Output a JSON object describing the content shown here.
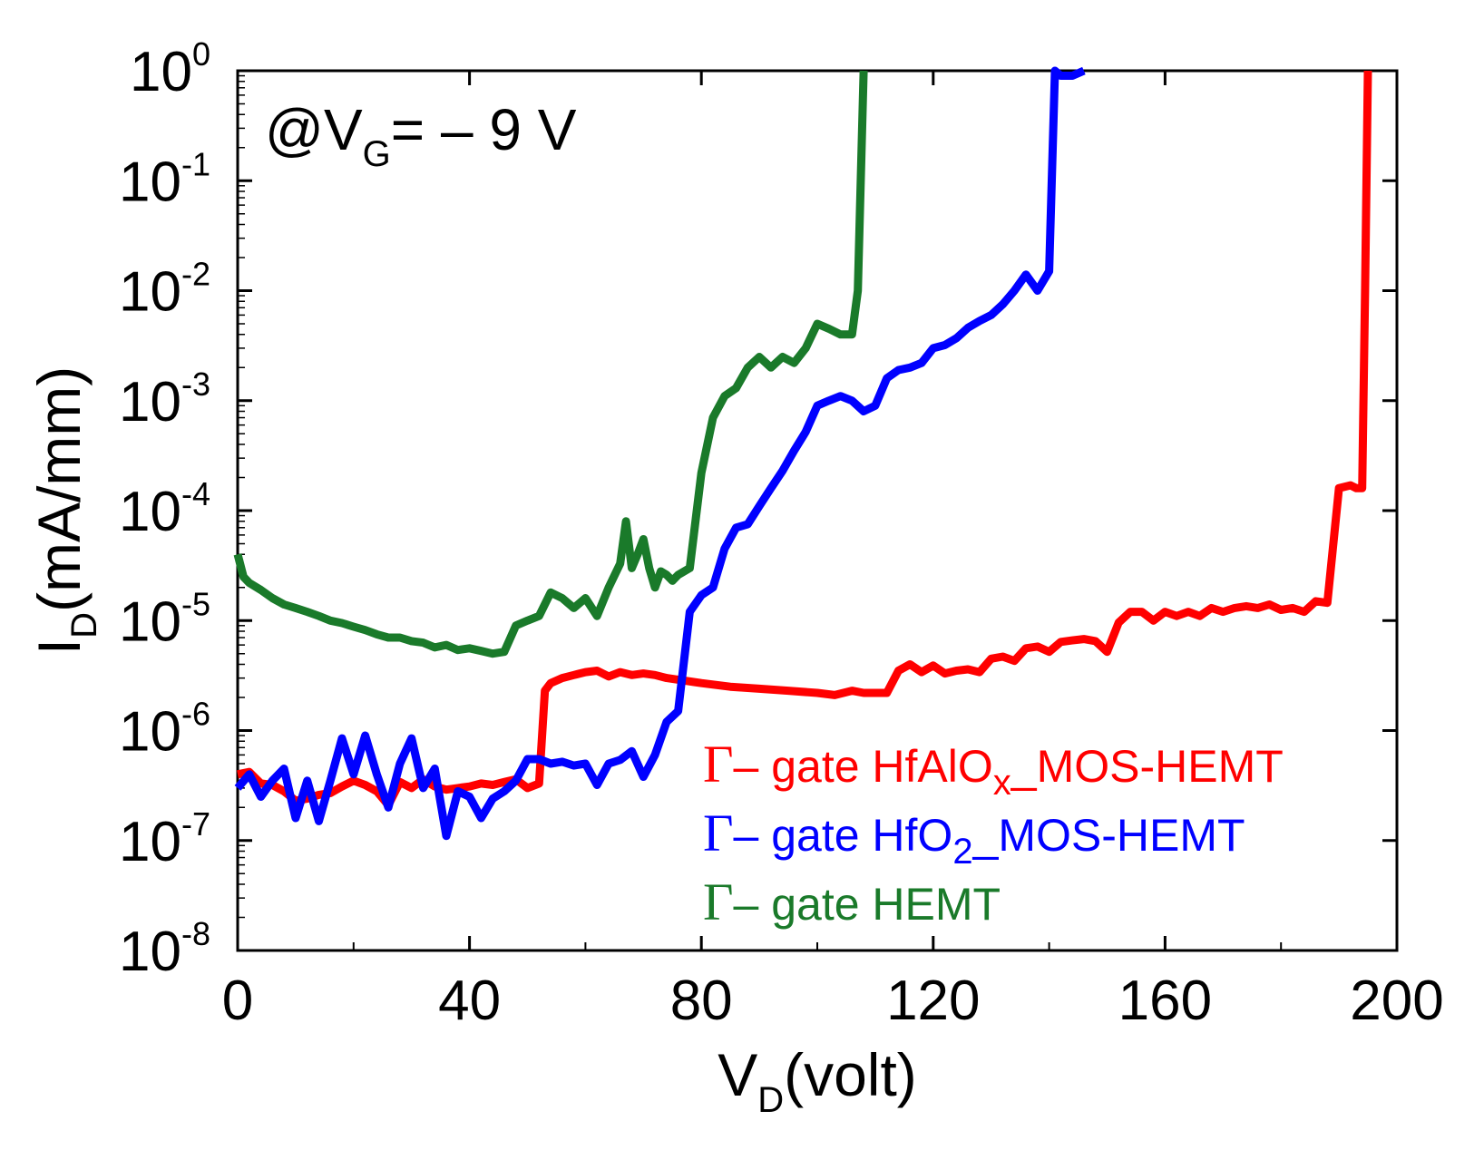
{
  "chart_data": {
    "type": "line",
    "title": "",
    "annotation": {
      "prefix": "@V",
      "sub": "G",
      "suffix": "= – 9 V"
    },
    "xlabel": {
      "main": "V",
      "sub": "D",
      "rest": "(volt)"
    },
    "ylabel": {
      "main": "I",
      "sub": "D",
      "rest": "(mA/mm)"
    },
    "xlim": [
      0,
      200
    ],
    "ylim_log10": [
      -8,
      0
    ],
    "y_scale": "log",
    "x_ticks": [
      0,
      40,
      80,
      120,
      160,
      200
    ],
    "x_tick_labels": [
      "0",
      "40",
      "80",
      "120",
      "160",
      "200"
    ],
    "y_tick_exponents": [
      0,
      -1,
      -2,
      -3,
      -4,
      -5,
      -6,
      -7,
      -8
    ],
    "y_tick_labels": [
      {
        "base": "10",
        "exp": "0"
      },
      {
        "base": "10",
        "exp": "-1"
      },
      {
        "base": "10",
        "exp": "-2"
      },
      {
        "base": "10",
        "exp": "-3"
      },
      {
        "base": "10",
        "exp": "-4"
      },
      {
        "base": "10",
        "exp": "-5"
      },
      {
        "base": "10",
        "exp": "-6"
      },
      {
        "base": "10",
        "exp": "-7"
      },
      {
        "base": "10",
        "exp": "-8"
      }
    ],
    "legend_position": "bottom-right",
    "series": [
      {
        "name": "Γ– gate HfAlOx_MOS-HEMT",
        "legend": {
          "gamma": "Γ",
          "text1": "– gate HfAlO",
          "sub": "x",
          "text2": "_MOS-HEMT"
        },
        "color": "#ff0000",
        "x": [
          0,
          2,
          4,
          6,
          8,
          10,
          12,
          14,
          16,
          18,
          20,
          22,
          24,
          26,
          28,
          30,
          32,
          34,
          36,
          38,
          40,
          42,
          44,
          46,
          48,
          50,
          52,
          53,
          54,
          56,
          58,
          60,
          62,
          64,
          66,
          68,
          70,
          72,
          74,
          76,
          78,
          80,
          85,
          90,
          95,
          100,
          103,
          106,
          108,
          110,
          112,
          114,
          116,
          118,
          120,
          122,
          124,
          126,
          128,
          130,
          132,
          134,
          136,
          138,
          140,
          142,
          144,
          146,
          148,
          150,
          152,
          154,
          156,
          158,
          160,
          162,
          164,
          166,
          168,
          170,
          172,
          174,
          176,
          178,
          180,
          182,
          184,
          186,
          188,
          190,
          192,
          193,
          194,
          194.5,
          195
        ],
        "y": [
          4e-07,
          4.2e-07,
          3.3e-07,
          3.2e-07,
          2.8e-07,
          2.3e-07,
          2.4e-07,
          2.6e-07,
          2.7e-07,
          3.1e-07,
          3.5e-07,
          3.2e-07,
          2.8e-07,
          2.1e-07,
          3.4e-07,
          3e-07,
          3.6e-07,
          3.1e-07,
          2.9e-07,
          3e-07,
          3.1e-07,
          3.3e-07,
          3.2e-07,
          3.4e-07,
          3.6e-07,
          3e-07,
          3.3e-07,
          2.3e-06,
          2.7e-06,
          3e-06,
          3.2e-06,
          3.4e-06,
          3.5e-06,
          3.1e-06,
          3.4e-06,
          3.2e-06,
          3.3e-06,
          3.2e-06,
          3e-06,
          2.9e-06,
          2.8e-06,
          2.7e-06,
          2.5e-06,
          2.4e-06,
          2.3e-06,
          2.2e-06,
          2.1e-06,
          2.3e-06,
          2.2e-06,
          2.2e-06,
          2.2e-06,
          3.5e-06,
          4e-06,
          3.4e-06,
          3.9e-06,
          3.3e-06,
          3.5e-06,
          3.6e-06,
          3.4e-06,
          4.5e-06,
          4.7e-06,
          4.3e-06,
          5.6e-06,
          5.8e-06,
          5.2e-06,
          6.4e-06,
          6.6e-06,
          6.8e-06,
          6.5e-06,
          5.2e-06,
          9.6e-06,
          1.2e-05,
          1.2e-05,
          1e-05,
          1.2e-05,
          1.1e-05,
          1.2e-05,
          1.1e-05,
          1.3e-05,
          1.2e-05,
          1.3e-05,
          1.35e-05,
          1.3e-05,
          1.4e-05,
          1.25e-05,
          1.3e-05,
          1.2e-05,
          1.5e-05,
          1.45e-05,
          0.00016,
          0.00017,
          0.00016,
          0.00016,
          0.01,
          1.0
        ]
      },
      {
        "name": "Γ– gate HfO2_MOS-HEMT",
        "legend": {
          "gamma": "Γ",
          "text1": "– gate HfO",
          "sub": "2",
          "text2": "_MOS-HEMT"
        },
        "color": "#0000ff",
        "x": [
          0,
          2,
          4,
          6,
          8,
          10,
          12,
          14,
          16,
          18,
          20,
          22,
          24,
          26,
          28,
          30,
          32,
          34,
          36,
          38,
          40,
          42,
          44,
          46,
          48,
          50,
          52,
          54,
          56,
          58,
          60,
          62,
          64,
          66,
          68,
          70,
          72,
          74,
          76,
          78,
          80,
          82,
          84,
          86,
          88,
          90,
          92,
          94,
          96,
          98,
          100,
          102,
          104,
          106,
          108,
          110,
          112,
          114,
          116,
          118,
          120,
          122,
          124,
          126,
          128,
          130,
          132,
          134,
          136,
          138,
          140,
          141,
          142,
          143,
          144,
          146
        ],
        "y": [
          3e-07,
          4e-07,
          2.5e-07,
          3.5e-07,
          4.5e-07,
          1.6e-07,
          3.5e-07,
          1.5e-07,
          3.5e-07,
          8.5e-07,
          4e-07,
          9e-07,
          4e-07,
          2e-07,
          5e-07,
          8.5e-07,
          3e-07,
          4.5e-07,
          1.1e-07,
          2.8e-07,
          2.5e-07,
          1.6e-07,
          2.4e-07,
          2.8e-07,
          3.5e-07,
          5.5e-07,
          5.5e-07,
          5e-07,
          5.2e-07,
          4.8e-07,
          5e-07,
          3.2e-07,
          5e-07,
          5.4e-07,
          6.5e-07,
          3.8e-07,
          6e-07,
          1.2e-06,
          1.5e-06,
          1.2e-05,
          1.7e-05,
          2e-05,
          4.5e-05,
          7e-05,
          7.5e-05,
          0.00011,
          0.00016,
          0.00023,
          0.00035,
          0.00052,
          0.0009,
          0.001,
          0.0011,
          0.001,
          0.0008,
          0.0009,
          0.0016,
          0.0019,
          0.002,
          0.0022,
          0.003,
          0.0032,
          0.0037,
          0.0046,
          0.0053,
          0.006,
          0.0075,
          0.01,
          0.014,
          0.01,
          0.015,
          1.0,
          0.9,
          0.9,
          0.9,
          1.0
        ]
      },
      {
        "name": "Γ– gate HEMT",
        "legend": {
          "gamma": "Γ",
          "text1": "– gate HEMT",
          "sub": "",
          "text2": ""
        },
        "color": "#1a7a2a",
        "x": [
          0,
          1,
          2,
          4,
          6,
          8,
          10,
          12,
          14,
          16,
          18,
          20,
          22,
          24,
          26,
          28,
          30,
          32,
          34,
          36,
          38,
          40,
          42,
          44,
          46,
          48,
          50,
          52,
          54,
          56,
          58,
          60,
          62,
          64,
          66,
          67,
          68,
          69,
          70,
          71,
          72,
          73,
          74,
          75,
          76,
          78,
          80,
          82,
          84,
          86,
          88,
          90,
          92,
          94,
          96,
          98,
          100,
          102,
          104,
          106,
          107,
          108
        ],
        "y": [
          4e-05,
          2.5e-05,
          2.2e-05,
          1.9e-05,
          1.6e-05,
          1.4e-05,
          1.3e-05,
          1.2e-05,
          1.1e-05,
          1e-05,
          9.5e-06,
          8.8e-06,
          8.2e-06,
          7.5e-06,
          7e-06,
          7e-06,
          6.5e-06,
          6.3e-06,
          5.7e-06,
          6e-06,
          5.4e-06,
          5.6e-06,
          5.3e-06,
          5e-06,
          5.2e-06,
          9e-06,
          1e-05,
          1.1e-05,
          1.8e-05,
          1.6e-05,
          1.3e-05,
          1.6e-05,
          1.1e-05,
          2e-05,
          3.3e-05,
          8e-05,
          3e-05,
          4e-05,
          5.5e-05,
          3e-05,
          2e-05,
          2.8e-05,
          2.6e-05,
          2.3e-05,
          2.6e-05,
          3e-05,
          0.00022,
          0.0007,
          0.0011,
          0.0013,
          0.002,
          0.0025,
          0.002,
          0.0025,
          0.0022,
          0.003,
          0.005,
          0.0045,
          0.004,
          0.004,
          0.01,
          1.0
        ]
      }
    ]
  }
}
